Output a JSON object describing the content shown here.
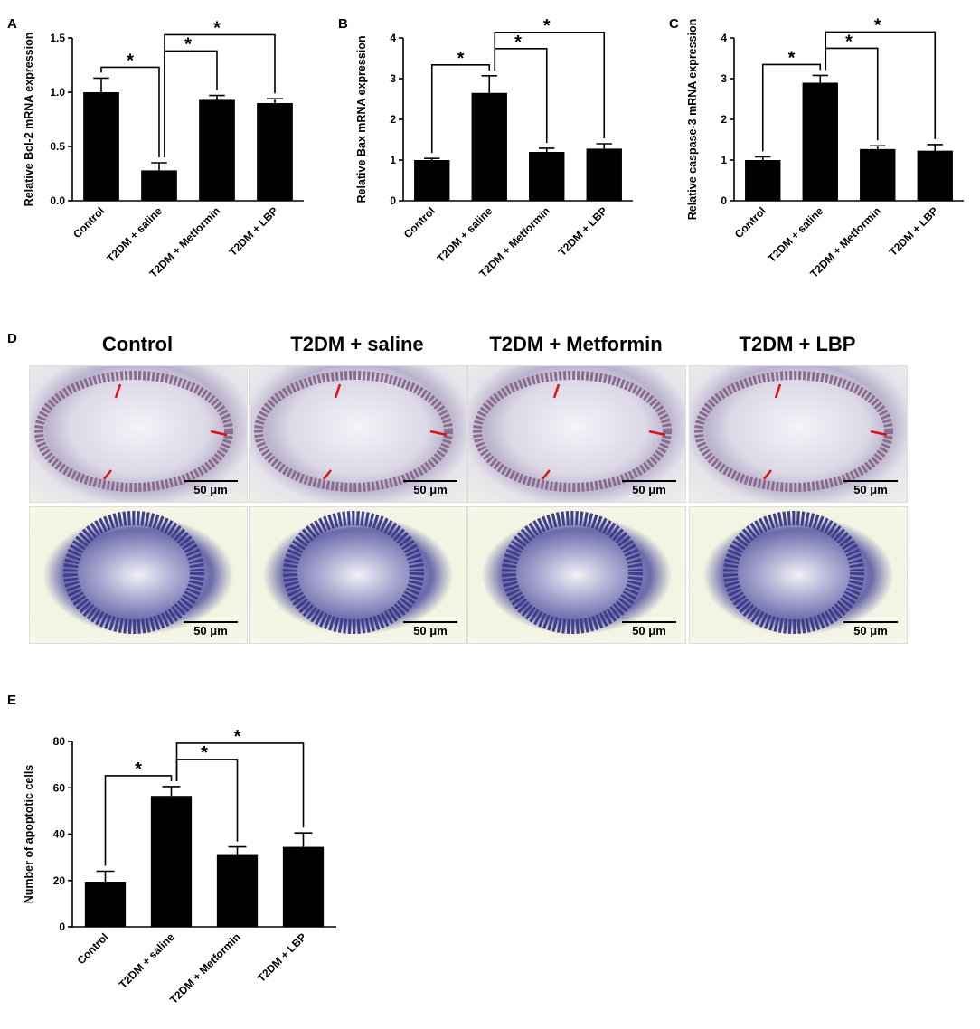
{
  "panels": {
    "a": "A",
    "b": "B",
    "c": "C",
    "d": "D",
    "e": "E"
  },
  "chart_data": [
    {
      "id": "A",
      "type": "bar",
      "categories": [
        "Control",
        "T2DM + saline",
        "T2DM + Metformin",
        "T2DM + LBP"
      ],
      "values": [
        1.0,
        0.28,
        0.93,
        0.9
      ],
      "errors": [
        0.13,
        0.07,
        0.04,
        0.04
      ],
      "ylabel": "Relative Bcl-2 mRNA expression",
      "ylim": [
        0,
        1.5
      ],
      "yticks": [
        "0.0",
        "0.5",
        "1.0",
        "1.5"
      ],
      "significance": [
        {
          "from": 0,
          "to": 1,
          "label": "*"
        },
        {
          "from": 1,
          "to": 2,
          "label": "*"
        },
        {
          "from": 1,
          "to": 3,
          "label": "*"
        }
      ]
    },
    {
      "id": "B",
      "type": "bar",
      "categories": [
        "Control",
        "T2DM + saline",
        "T2DM + Metformin",
        "T2DM + LBP"
      ],
      "values": [
        1.0,
        2.65,
        1.2,
        1.28
      ],
      "errors": [
        0.04,
        0.42,
        0.09,
        0.12
      ],
      "ylabel": "Relative Bax mRNA expression",
      "ylim": [
        0,
        4
      ],
      "yticks": [
        "0",
        "1",
        "2",
        "3",
        "4"
      ],
      "significance": [
        {
          "from": 0,
          "to": 1,
          "label": "*"
        },
        {
          "from": 1,
          "to": 2,
          "label": "*"
        },
        {
          "from": 1,
          "to": 3,
          "label": "*"
        }
      ]
    },
    {
      "id": "C",
      "type": "bar",
      "categories": [
        "Control",
        "T2DM + saline",
        "T2DM + Metformin",
        "T2DM + LBP"
      ],
      "values": [
        1.0,
        2.9,
        1.27,
        1.23
      ],
      "errors": [
        0.08,
        0.18,
        0.08,
        0.15
      ],
      "ylabel": "Relative caspase-3 mRNA expression",
      "ylim": [
        0,
        4
      ],
      "yticks": [
        "0",
        "1",
        "2",
        "3",
        "4"
      ],
      "significance": [
        {
          "from": 0,
          "to": 1,
          "label": "*"
        },
        {
          "from": 1,
          "to": 2,
          "label": "*"
        },
        {
          "from": 1,
          "to": 3,
          "label": "*"
        }
      ]
    },
    {
      "id": "E",
      "type": "bar",
      "categories": [
        "Control",
        "T2DM + saline",
        "T2DM + Metformin",
        "T2DM + LBP"
      ],
      "values": [
        19.5,
        56.5,
        31,
        34.5
      ],
      "errors": [
        4.5,
        4,
        3.5,
        6
      ],
      "ylabel": "Number of apoptotic cells",
      "ylim": [
        0,
        80
      ],
      "yticks": [
        "0",
        "20",
        "40",
        "60",
        "80"
      ],
      "significance": [
        {
          "from": 0,
          "to": 1,
          "label": "*"
        },
        {
          "from": 1,
          "to": 2,
          "label": "*"
        },
        {
          "from": 1,
          "to": 3,
          "label": "*"
        }
      ]
    }
  ],
  "micrographs": {
    "titles": [
      "Control",
      "T2DM + saline",
      "T2DM + Metformin",
      "T2DM + LBP"
    ],
    "scale_label": "50 μm"
  },
  "colors": {
    "bar": "#000000",
    "arrow": "#e01010"
  }
}
